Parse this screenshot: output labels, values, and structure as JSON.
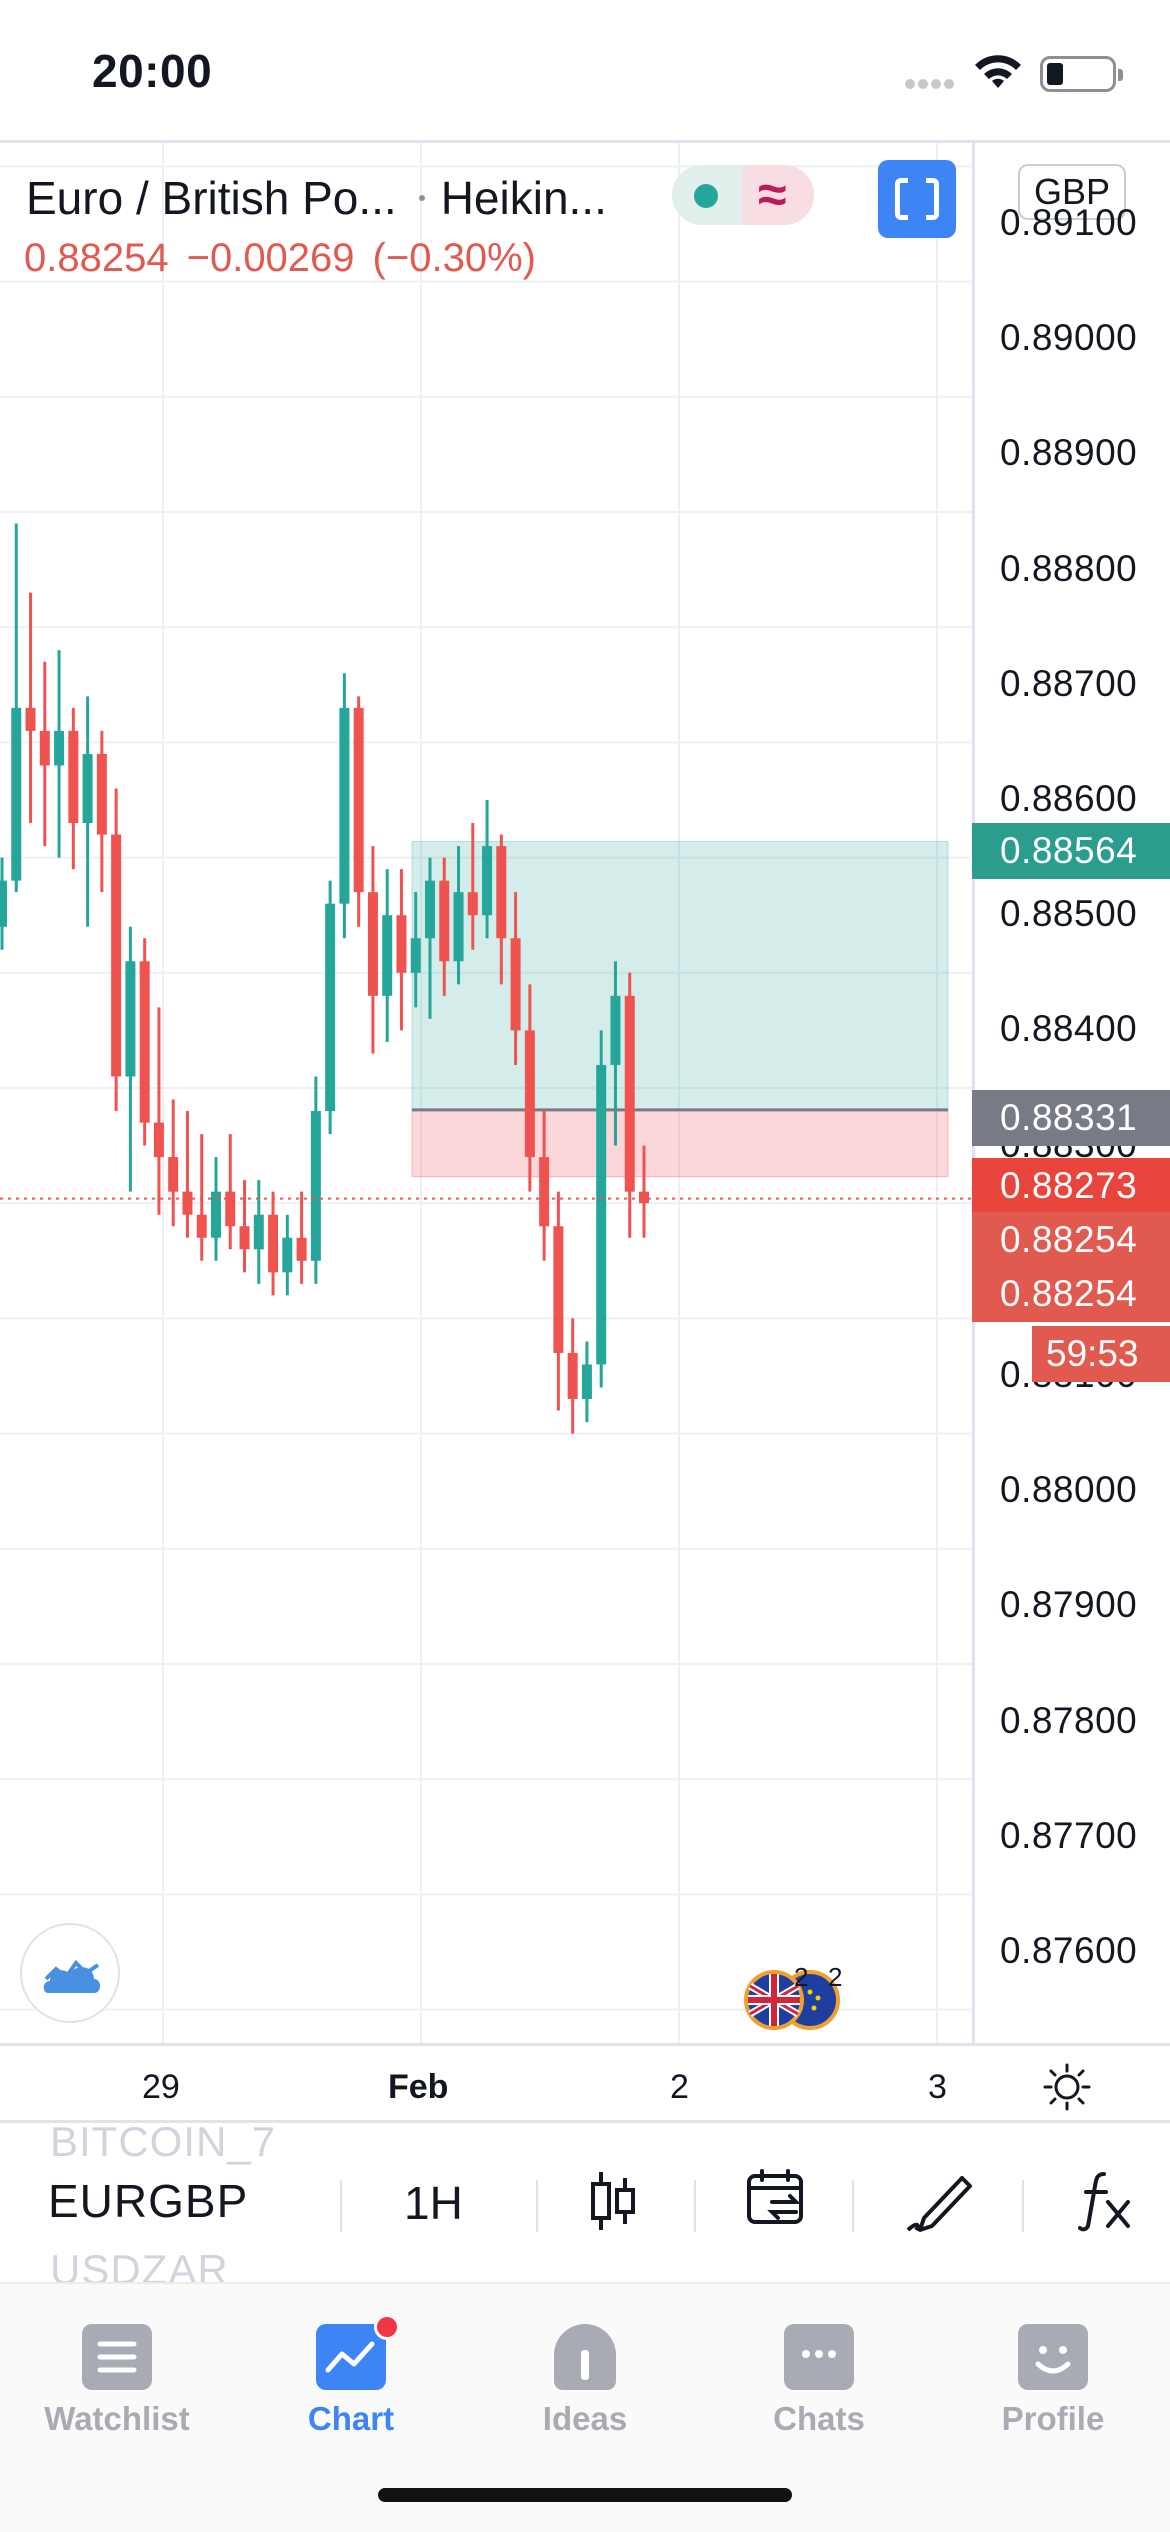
{
  "status_bar": {
    "time": "20:00"
  },
  "legend": {
    "symbol_name": "Euro / British Po...",
    "chart_style": "Heikin...",
    "last_price": "0.88254",
    "change": "−0.00269",
    "change_pct": "(−0.30%)"
  },
  "currency": "GBP",
  "price_axis": {
    "ticks": [
      "0.89100",
      "0.89000",
      "0.88900",
      "0.88800",
      "0.88700",
      "0.88600",
      "0.88500",
      "0.88400",
      "0.88300",
      "0.88100",
      "0.88000",
      "0.87900",
      "0.87800",
      "0.87700",
      "0.87600"
    ],
    "tags": {
      "take_profit": "0.88564",
      "entry": "0.88331",
      "stop_loss": "0.88273",
      "last_1": "0.88254",
      "last_2": "0.88254",
      "countdown": "59:53"
    }
  },
  "time_axis": {
    "ticks": [
      "29",
      "Feb",
      "2",
      "3"
    ]
  },
  "news_badges": {
    "gb_count": "2",
    "eu_count": "2"
  },
  "toolbar": {
    "ghost_above": "BITCOIN_7",
    "symbol": "EURGBP",
    "ghost_below": "USDZAR",
    "interval": "1H"
  },
  "tabs": [
    {
      "label": "Watchlist",
      "icon": "list-icon"
    },
    {
      "label": "Chart",
      "icon": "chart-icon"
    },
    {
      "label": "Ideas",
      "icon": "bulb-icon"
    },
    {
      "label": "Chats",
      "icon": "chat-icon"
    },
    {
      "label": "Profile",
      "icon": "smiley-icon"
    }
  ],
  "colors": {
    "up": "#26a69a",
    "down": "#ef5350",
    "accent": "#3d84f5",
    "take_profit_zone": "#26a69a",
    "stop_loss_zone": "#f23645"
  },
  "chart_data": {
    "type": "candlestick",
    "style": "Heikin Ashi",
    "symbol": "EURGBP",
    "interval": "1H",
    "ylim": [
      0.8754,
      0.8915
    ],
    "grid": true,
    "position": {
      "type": "long",
      "entry": 0.88331,
      "take_profit": 0.88564,
      "stop_loss": 0.88273
    },
    "last_price_line": 0.88254,
    "candles": [
      {
        "o": 0.8849,
        "h": 0.8855,
        "l": 0.8847,
        "c": 0.8853
      },
      {
        "o": 0.8853,
        "h": 0.8884,
        "l": 0.8852,
        "c": 0.8868
      },
      {
        "o": 0.8868,
        "h": 0.8878,
        "l": 0.8858,
        "c": 0.8866
      },
      {
        "o": 0.8866,
        "h": 0.8872,
        "l": 0.8856,
        "c": 0.8863
      },
      {
        "o": 0.8863,
        "h": 0.8873,
        "l": 0.8855,
        "c": 0.8866
      },
      {
        "o": 0.8866,
        "h": 0.8868,
        "l": 0.8854,
        "c": 0.8858
      },
      {
        "o": 0.8858,
        "h": 0.8869,
        "l": 0.8849,
        "c": 0.8864
      },
      {
        "o": 0.8864,
        "h": 0.8866,
        "l": 0.8852,
        "c": 0.8857
      },
      {
        "o": 0.8857,
        "h": 0.8861,
        "l": 0.8833,
        "c": 0.8836
      },
      {
        "o": 0.8836,
        "h": 0.8849,
        "l": 0.8826,
        "c": 0.8846
      },
      {
        "o": 0.8846,
        "h": 0.8848,
        "l": 0.883,
        "c": 0.8832
      },
      {
        "o": 0.8832,
        "h": 0.8842,
        "l": 0.8824,
        "c": 0.8829
      },
      {
        "o": 0.8829,
        "h": 0.8834,
        "l": 0.8823,
        "c": 0.8826
      },
      {
        "o": 0.8826,
        "h": 0.8833,
        "l": 0.8822,
        "c": 0.8824
      },
      {
        "o": 0.8824,
        "h": 0.8831,
        "l": 0.882,
        "c": 0.8822
      },
      {
        "o": 0.8822,
        "h": 0.8829,
        "l": 0.882,
        "c": 0.8826
      },
      {
        "o": 0.8826,
        "h": 0.8831,
        "l": 0.8821,
        "c": 0.8823
      },
      {
        "o": 0.8823,
        "h": 0.8827,
        "l": 0.8819,
        "c": 0.8821
      },
      {
        "o": 0.8821,
        "h": 0.8827,
        "l": 0.8818,
        "c": 0.8824
      },
      {
        "o": 0.8824,
        "h": 0.8826,
        "l": 0.8817,
        "c": 0.8819
      },
      {
        "o": 0.8819,
        "h": 0.8824,
        "l": 0.8817,
        "c": 0.8822
      },
      {
        "o": 0.8822,
        "h": 0.8826,
        "l": 0.8818,
        "c": 0.882
      },
      {
        "o": 0.882,
        "h": 0.8836,
        "l": 0.8818,
        "c": 0.8833
      },
      {
        "o": 0.8833,
        "h": 0.8853,
        "l": 0.8831,
        "c": 0.8851
      },
      {
        "o": 0.8851,
        "h": 0.8871,
        "l": 0.8848,
        "c": 0.8868
      },
      {
        "o": 0.8868,
        "h": 0.8869,
        "l": 0.8849,
        "c": 0.8852
      },
      {
        "o": 0.8852,
        "h": 0.8856,
        "l": 0.8838,
        "c": 0.8843
      },
      {
        "o": 0.8843,
        "h": 0.8854,
        "l": 0.8839,
        "c": 0.885
      },
      {
        "o": 0.885,
        "h": 0.8854,
        "l": 0.884,
        "c": 0.8845
      },
      {
        "o": 0.8845,
        "h": 0.8852,
        "l": 0.8842,
        "c": 0.8848
      },
      {
        "o": 0.8848,
        "h": 0.8855,
        "l": 0.8841,
        "c": 0.8853
      },
      {
        "o": 0.8853,
        "h": 0.8855,
        "l": 0.8843,
        "c": 0.8846
      },
      {
        "o": 0.8846,
        "h": 0.8856,
        "l": 0.8844,
        "c": 0.8852
      },
      {
        "o": 0.8852,
        "h": 0.8858,
        "l": 0.8847,
        "c": 0.885
      },
      {
        "o": 0.885,
        "h": 0.886,
        "l": 0.8848,
        "c": 0.8856
      },
      {
        "o": 0.8856,
        "h": 0.8857,
        "l": 0.8844,
        "c": 0.8848
      },
      {
        "o": 0.8848,
        "h": 0.8852,
        "l": 0.8837,
        "c": 0.884
      },
      {
        "o": 0.884,
        "h": 0.8844,
        "l": 0.8826,
        "c": 0.8829
      },
      {
        "o": 0.8829,
        "h": 0.8833,
        "l": 0.882,
        "c": 0.8823
      },
      {
        "o": 0.8823,
        "h": 0.8826,
        "l": 0.8807,
        "c": 0.8812
      },
      {
        "o": 0.8812,
        "h": 0.8815,
        "l": 0.8805,
        "c": 0.8808
      },
      {
        "o": 0.8808,
        "h": 0.8813,
        "l": 0.8806,
        "c": 0.8811
      },
      {
        "o": 0.8811,
        "h": 0.884,
        "l": 0.8809,
        "c": 0.8837
      },
      {
        "o": 0.8837,
        "h": 0.8846,
        "l": 0.883,
        "c": 0.8843
      },
      {
        "o": 0.8843,
        "h": 0.8845,
        "l": 0.8822,
        "c": 0.8826
      },
      {
        "o": 0.8826,
        "h": 0.883,
        "l": 0.8822,
        "c": 0.8825
      }
    ]
  }
}
